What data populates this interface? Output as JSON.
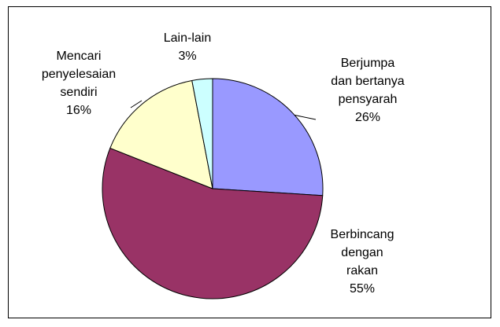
{
  "chart_data": {
    "type": "pie",
    "categories": [
      "Berjumpa\ndan bertanya\npensyarah",
      "Berbincang\ndengan\nrakan",
      "Mencari\npenyelesaian\nsendiri",
      "Lain-lain"
    ],
    "values": [
      26,
      55,
      16,
      3
    ],
    "value_labels": [
      "26%",
      "55%",
      "16%",
      "3%"
    ],
    "colors": [
      "#9999ff",
      "#993366",
      "#ffffcc",
      "#ccffff"
    ]
  }
}
